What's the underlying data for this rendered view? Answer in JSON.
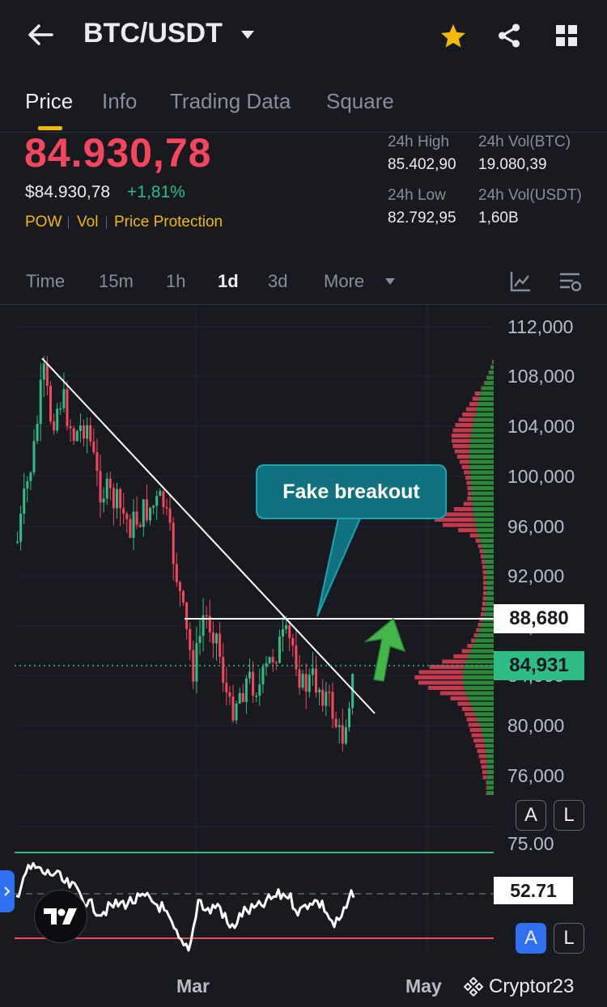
{
  "header": {
    "title": "BTC/USDT",
    "back_icon": "arrow-left-icon",
    "dropdown_icon": "caret-down-icon",
    "star_icon": "star-icon",
    "share_icon": "share-icon",
    "grid_icon": "grid-icon"
  },
  "tabs": [
    {
      "label": "Price",
      "active": true
    },
    {
      "label": "Info",
      "active": false
    },
    {
      "label": "Trading Data",
      "active": false
    },
    {
      "label": "Square",
      "active": false
    }
  ],
  "ticker": {
    "last_price": "84.930,78",
    "usd_price": "$84.930,78",
    "change": "+1,81%",
    "tags": [
      "POW",
      "Vol",
      "Price Protection"
    ],
    "stats": [
      {
        "label": "24h High",
        "value": "85.402,90"
      },
      {
        "label": "24h Vol(BTC)",
        "value": "19.080,39"
      },
      {
        "label": "24h Low",
        "value": "82.792,95"
      },
      {
        "label": "24h Vol(USDT)",
        "value": "1,60B"
      }
    ]
  },
  "timeframes": {
    "items": [
      "Time",
      "15m",
      "1h",
      "1d",
      "3d"
    ],
    "active": "1d",
    "more": "More"
  },
  "chart": {
    "y_ticks": [
      "112,000",
      "108,000",
      "104,000",
      "100,000",
      "96,000",
      "92,000",
      "88,000",
      "84,000",
      "80,000",
      "76,000",
      "75.00"
    ],
    "level_label": "88,680",
    "current_label": "84,931",
    "annotation": "Fake breakout",
    "x_labels": [
      "Mar",
      "May"
    ],
    "scale_buttons": [
      "A",
      "L"
    ]
  },
  "indicator": {
    "value_label": "52.71",
    "scale_buttons": [
      "A",
      "L"
    ]
  },
  "watermark": "Cryptor23",
  "colors": {
    "up": "#2ebd85",
    "down": "#f6465d",
    "accent": "#f0b90b",
    "background": "#181a20"
  }
}
